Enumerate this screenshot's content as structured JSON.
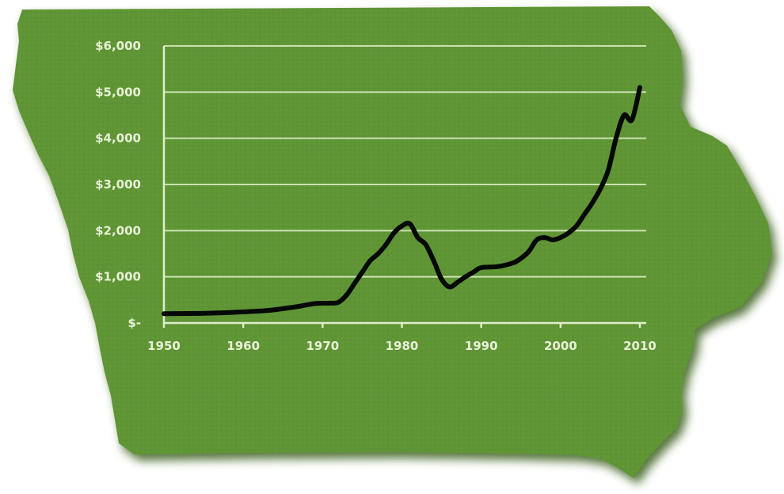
{
  "chart_data": {
    "type": "line",
    "title": "",
    "xlabel": "",
    "ylabel": "",
    "xlim": [
      1950,
      2010
    ],
    "ylim": [
      0,
      6000
    ],
    "grid": true,
    "legend": "none",
    "x_ticks": [
      1950,
      1960,
      1970,
      1980,
      1990,
      2000,
      2010
    ],
    "x_tick_labels": [
      "1950",
      "1960",
      "1970",
      "1980",
      "1990",
      "2000",
      "2010"
    ],
    "y_ticks": [
      0,
      1000,
      2000,
      3000,
      4000,
      5000,
      6000
    ],
    "y_tick_labels": [
      "$-",
      "$1,000",
      "$2,000",
      "$3,000",
      "$4,000",
      "$5,000",
      "$6,000"
    ],
    "series": [
      {
        "x": [
          1950,
          1955,
          1960,
          1963,
          1965,
          1967,
          1969,
          1971,
          1972,
          1973,
          1974,
          1975,
          1976,
          1977,
          1978,
          1979,
          1980,
          1981,
          1982,
          1983,
          1984,
          1985,
          1986,
          1987,
          1988,
          1989,
          1990,
          1992,
          1994,
          1995,
          1996,
          1997,
          1998,
          1999,
          2000,
          2001,
          2002,
          2003,
          2004,
          2005,
          2006,
          2007,
          2008,
          2009,
          2010
        ],
        "values": [
          200,
          210,
          240,
          270,
          310,
          360,
          420,
          430,
          450,
          600,
          850,
          1100,
          1350,
          1500,
          1700,
          1950,
          2100,
          2150,
          1850,
          1700,
          1350,
          950,
          780,
          880,
          1000,
          1100,
          1200,
          1220,
          1300,
          1400,
          1550,
          1800,
          1850,
          1800,
          1850,
          1950,
          2100,
          2350,
          2600,
          2900,
          3300,
          4000,
          4500,
          4400,
          5100
        ]
      }
    ]
  },
  "colors": {
    "map_fill": "#5f9535",
    "map_shadow": "#3a5e1f",
    "line": "#050805",
    "grid": "#dfeecb",
    "tick_text": "#e8f0d6"
  }
}
